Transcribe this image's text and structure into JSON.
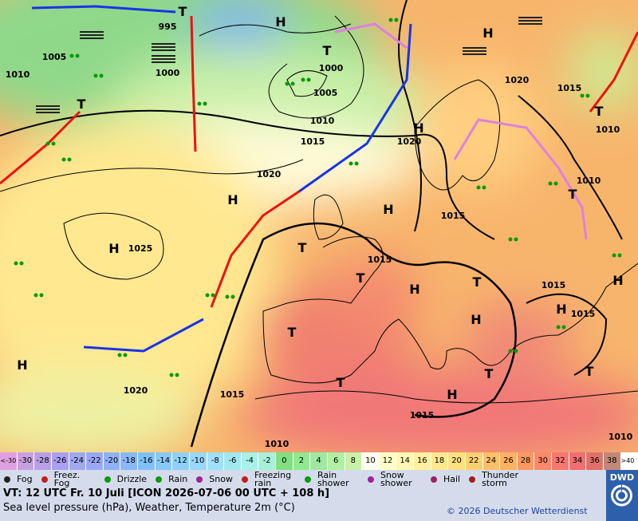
{
  "map": {
    "pressure_labels": [
      995,
      1005,
      1010,
      1000,
      1000,
      1005,
      1010,
      1015,
      1020,
      1025,
      1020,
      1015,
      1015,
      1020,
      1015,
      1020,
      1015,
      1010,
      1010,
      1015,
      1015,
      1015,
      1010,
      1010
    ],
    "centers": [
      "T",
      "H",
      "T",
      "T",
      "H",
      "H",
      "H",
      "H",
      "H",
      "T",
      "T",
      "H",
      "T",
      "H",
      "H",
      "H",
      "T",
      "T",
      "T",
      "H",
      "T",
      "T",
      "T",
      "H"
    ]
  },
  "color_scale": {
    "labels": [
      "<-30",
      -30,
      -28,
      -26,
      -24,
      -22,
      -20,
      -18,
      -16,
      -14,
      -12,
      -10,
      -8,
      -6,
      -4,
      -2,
      0,
      2,
      4,
      6,
      8,
      10,
      12,
      14,
      16,
      18,
      20,
      22,
      24,
      26,
      28,
      30,
      32,
      34,
      36,
      38,
      ">40 °C"
    ],
    "colors": [
      "#e0a0e0",
      "#c8a0e0",
      "#b8a0e8",
      "#a8a0f0",
      "#a0a8f0",
      "#98a8f4",
      "#90b0f8",
      "#88b8f8",
      "#80c0f8",
      "#88c8f8",
      "#90d0f8",
      "#98d8f8",
      "#a0e0f8",
      "#a0e8f0",
      "#a8f0e8",
      "#a8f0d8",
      "#80e080",
      "#90e890",
      "#a0e8a0",
      "#b0f0a0",
      "#c8f0a8",
      "#fffff0",
      "#ffffc8",
      "#fff8b0",
      "#fff0a0",
      "#ffe890",
      "#ffe080",
      "#ffd070",
      "#ffc068",
      "#ffb060",
      "#ff9860",
      "#ff8868",
      "#f87870",
      "#f07070",
      "#e07068",
      "#c08878",
      "#ffffff"
    ]
  },
  "legend": [
    "Fog",
    "Freez. Fog",
    "Drizzle",
    "Rain",
    "Snow",
    "Freezing rain",
    "Rain shower",
    "Snow shower",
    "Hail",
    "Thunder storm"
  ],
  "footer": {
    "valid_time": "VT: 12 UTC Fr.  10 Juli [ICON 2026-07-06  00 UTC + 108 h]",
    "description": "Sea level pressure (hPa), Weather, Temperature 2m (°C)",
    "copyright": "© 2026 Deutscher Wetterdienst",
    "logo": "DWD"
  }
}
